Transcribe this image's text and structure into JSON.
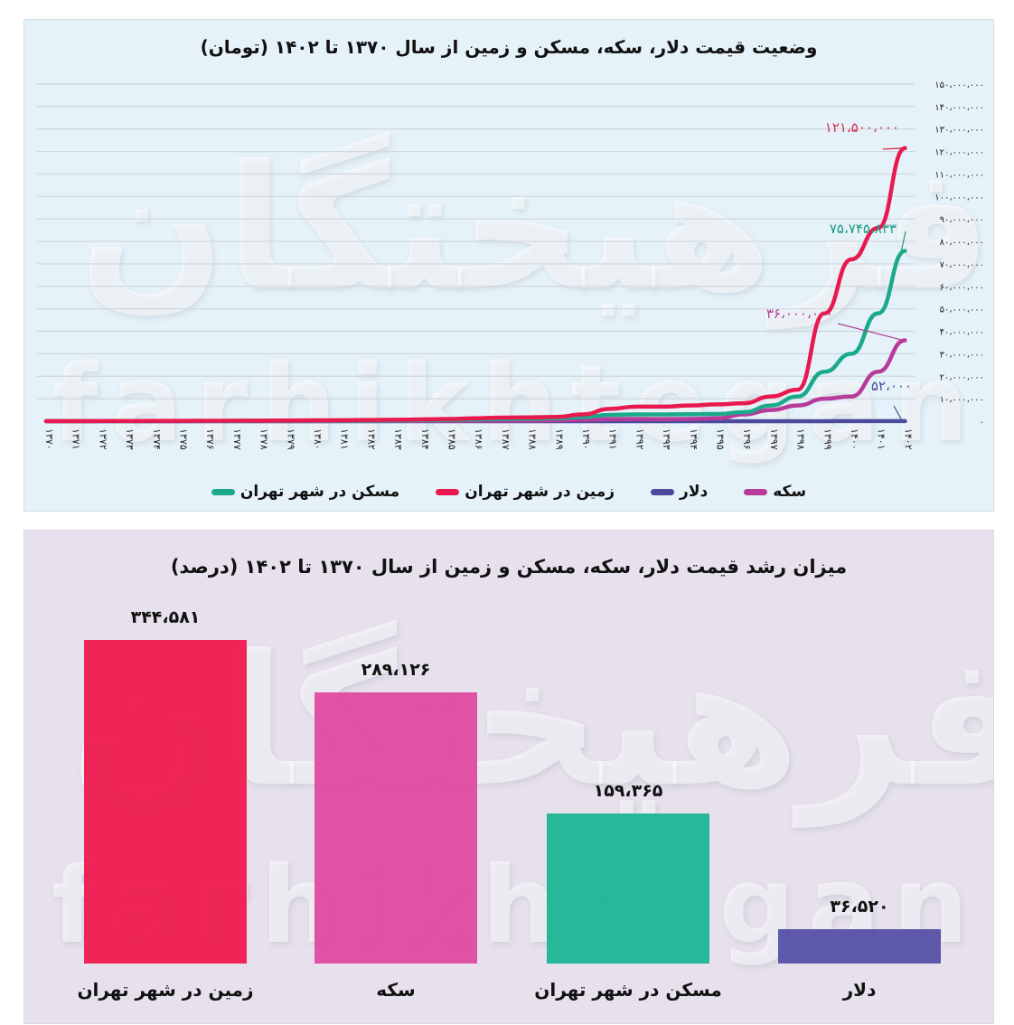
{
  "top_chart": {
    "title": "وضعیت  قیمت دلار، سکه، مسکن و زمین از سال ۱۳۷۰ تا ۱۴۰۲ (تومان)",
    "y_ticks": [
      "۰",
      "۱۰،۰۰۰،۰۰۰",
      "۲۰،۰۰۰،۰۰۰",
      "۳۰،۰۰۰،۰۰۰",
      "۴۰،۰۰۰،۰۰۰",
      "۵۰،۰۰۰،۰۰۰",
      "۶۰،۰۰۰،۰۰۰",
      "۷۰،۰۰۰،۰۰۰",
      "۸۰،۰۰۰،۰۰۰",
      "۹۰،۰۰۰،۰۰۰",
      "۱۰۰،۰۰۰،۰۰۰",
      "۱۱۰،۰۰۰،۰۰۰",
      "۱۲۰،۰۰۰،۰۰۰",
      "۱۳۰،۰۰۰،۰۰۰",
      "۱۴۰،۰۰۰،۰۰۰",
      "۱۵۰،۰۰۰،۰۰۰"
    ],
    "x_ticks": [
      "۱۳۷۰",
      "۱۳۷۱",
      "۱۳۷۲",
      "۱۳۷۳",
      "۱۳۷۴",
      "۱۳۷۵",
      "۱۳۷۶",
      "۱۳۷۷",
      "۱۳۷۸",
      "۱۳۷۹",
      "۱۳۸۰",
      "۱۳۸۱",
      "۱۳۸۲",
      "۱۳۸۳",
      "۱۳۸۴",
      "۱۳۸۵",
      "۱۳۸۶",
      "۱۳۸۷",
      "۱۳۸۸",
      "۱۳۸۹",
      "۱۳۹۰",
      "۱۳۹۱",
      "۱۳۹۲",
      "۱۳۹۳",
      "۱۳۹۴",
      "۱۳۹۵",
      "۱۳۹۶",
      "۱۳۹۷",
      "۱۳۹۸",
      "۱۳۹۹",
      "۱۴۰۰",
      "۱۴۰۱",
      "۱۴۰۲"
    ],
    "annotations": {
      "land": "۱۲۱،۵۰۰،۰۰۰",
      "housing": "۷۵،۷۴۵،۸۳۳",
      "coin": "۳۶،۰۰۰،۰۰۰",
      "dollar": "۵۲،۰۰۰"
    },
    "legend": {
      "coin": "سکه",
      "dollar": "دلار",
      "land": "زمین در شهر تهران",
      "housing": "مسکن  در شهر تهران"
    }
  },
  "bottom_chart": {
    "title": "میزان رشد قیمت دلار، سکه، مسکن و زمین از سال ۱۳۷۰ تا ۱۴۰۲ (درصد)",
    "bars": [
      {
        "label": "زمین در شهر تهران",
        "value_text": "۳۴۴،۵۸۱"
      },
      {
        "label": "سکه",
        "value_text": "۲۸۹،۱۲۶"
      },
      {
        "label": "مسکن در شهر تهران",
        "value_text": "۱۵۹،۳۶۵"
      },
      {
        "label": "دلار",
        "value_text": "۳۶،۵۲۰"
      }
    ]
  },
  "watermark": {
    "persian": "فرهیختگان",
    "latin": "farhikhtegan"
  },
  "colors": {
    "land": "#e8194f",
    "coin": "#b83a9b",
    "housing": "#1aaa8a",
    "dollar": "#4b4a9c",
    "bar_land": "#ee1a4e",
    "bar_coin": "#df4a9f",
    "bar_housing": "#1db493",
    "bar_dollar": "#5550a6"
  },
  "chart_data": [
    {
      "type": "line",
      "title": "وضعیت قیمت دلار، سکه، مسکن و زمین از سال ۱۳۷۰ تا ۱۴۰۲ (تومان)",
      "xlabel": "",
      "ylabel": "تومان",
      "ylim": [
        0,
        150000000
      ],
      "grid": true,
      "legend_position": "bottom",
      "x": [
        1370,
        1371,
        1372,
        1373,
        1374,
        1375,
        1376,
        1377,
        1378,
        1379,
        1380,
        1381,
        1382,
        1383,
        1384,
        1385,
        1386,
        1387,
        1388,
        1389,
        1390,
        1391,
        1392,
        1393,
        1394,
        1395,
        1396,
        1397,
        1398,
        1399,
        1400,
        1401,
        1402
      ],
      "series": [
        {
          "name": "زمین در شهر تهران",
          "values": [
            50000,
            60000,
            80000,
            100000,
            130000,
            160000,
            200000,
            230000,
            270000,
            320000,
            380000,
            450000,
            550000,
            650000,
            800000,
            1000000,
            1300000,
            1600000,
            1700000,
            1900000,
            3000000,
            5500000,
            6500000,
            6500000,
            7000000,
            7500000,
            8000000,
            11000000,
            14000000,
            48000000,
            72000000,
            86000000,
            121500000
          ]
        },
        {
          "name": "مسکن در شهر تهران",
          "values": [
            30000,
            35000,
            45000,
            55000,
            70000,
            85000,
            100000,
            120000,
            140000,
            170000,
            200000,
            240000,
            290000,
            350000,
            450000,
            600000,
            800000,
            1000000,
            1100000,
            1300000,
            1800000,
            2800000,
            3000000,
            3000000,
            3100000,
            3200000,
            4000000,
            7000000,
            11000000,
            22000000,
            30000000,
            48000000,
            75745833
          ]
        },
        {
          "name": "دلار",
          "values": [
            140,
            150,
            160,
            180,
            200,
            300,
            400,
            500,
            800,
            820,
            850,
            800,
            830,
            870,
            900,
            920,
            940,
            970,
            1000,
            1050,
            1200,
            2500,
            2800,
            3000,
            3200,
            3600,
            4200,
            10000,
            13000,
            25000,
            28000,
            35000,
            52000
          ]
        },
        {
          "name": "سکه",
          "values": [
            8000,
            9000,
            10000,
            12000,
            15000,
            20000,
            30000,
            40000,
            50000,
            60000,
            70000,
            75000,
            80000,
            90000,
            100000,
            120000,
            180000,
            230000,
            300000,
            400000,
            600000,
            900000,
            1000000,
            900000,
            1000000,
            1300000,
            3000000,
            5000000,
            7000000,
            10000000,
            11000000,
            22000000,
            36000000
          ]
        }
      ],
      "annotations": [
        "۱۲۱،۵۰۰،۰۰۰",
        "۷۵،۷۴۵،۸۳۳",
        "۳۶،۰۰۰،۰۰۰",
        "۵۲،۰۰۰"
      ]
    },
    {
      "type": "bar",
      "title": "میزان رشد قیمت دلار، سکه، مسکن و زمین از سال ۱۳۷۰ تا ۱۴۰۲ (درصد)",
      "xlabel": "",
      "ylabel": "درصد",
      "categories": [
        "زمین در شهر تهران",
        "سکه",
        "مسکن در شهر تهران",
        "دلار"
      ],
      "values": [
        344581,
        289126,
        159365,
        36520
      ],
      "grid": false
    }
  ]
}
